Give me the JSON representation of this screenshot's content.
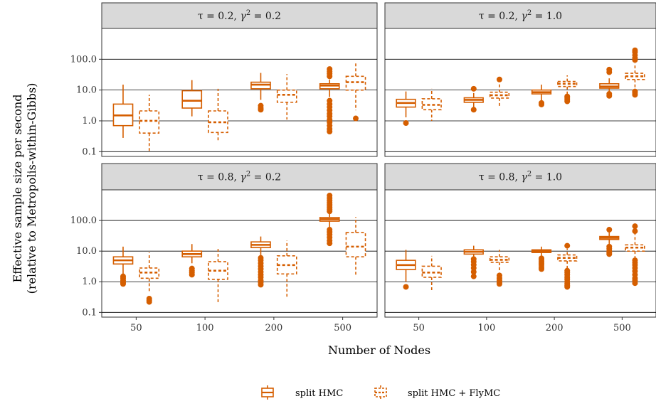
{
  "colors": {
    "series": "#D55E00",
    "strip_fill": "#D9D9D9",
    "grid": "#000000"
  },
  "chart_data": {
    "type": "boxplot",
    "ylabel_line1": "Effective sample size per second",
    "ylabel_line2": "(relative to Metropolis-within-Gibbs)",
    "xlabel": "Number of Nodes",
    "y_scale": "log10",
    "ylim": [
      0.07,
      1000
    ],
    "y_ticks": [
      0.1,
      1,
      10,
      100
    ],
    "y_tick_labels": [
      "0.1",
      "1.0",
      "10.0",
      "100.0"
    ],
    "categories": [
      "50",
      "100",
      "200",
      "500"
    ],
    "series": [
      {
        "name": "split HMC",
        "dash": "solid"
      },
      {
        "name": "split HMC + FlyMC",
        "dash": "dashed"
      }
    ],
    "panels": [
      {
        "strip_tau": "τ = 0.2, ",
        "strip_gamma": "γ",
        "strip_sup": "2",
        "strip_rest": " = 0.2",
        "boxes": [
          [
            {
              "q1": 0.7,
              "med": 1.5,
              "q3": 3.5,
              "lo": 0.28,
              "hi": 15,
              "out": []
            },
            {
              "q1": 0.4,
              "med": 1.0,
              "q3": 2.1,
              "lo": 0.09,
              "hi": 7.0,
              "out": []
            }
          ],
          [
            {
              "q1": 2.6,
              "med": 4.5,
              "q3": 9.5,
              "lo": 1.4,
              "hi": 21,
              "out": []
            },
            {
              "q1": 0.42,
              "med": 0.9,
              "q3": 2.1,
              "lo": 0.22,
              "hi": 11,
              "out": []
            }
          ],
          [
            {
              "q1": 11,
              "med": 15,
              "q3": 18,
              "lo": 4.8,
              "hi": 36,
              "out": [
                3.1,
                2.6,
                2.3
              ]
            },
            {
              "q1": 4.0,
              "med": 7.0,
              "q3": 10,
              "lo": 1.1,
              "hi": 33,
              "out": []
            }
          ],
          [
            {
              "q1": 11,
              "med": 14,
              "q3": 16,
              "lo": 6,
              "hi": 22,
              "out": [
                48,
                40,
                34,
                28,
                4.5,
                3.5,
                2.8,
                2.2,
                1.7,
                1.4,
                1.1,
                0.9,
                0.7,
                0.55,
                0.45
              ]
            },
            {
              "q1": 10,
              "med": 18,
              "q3": 28,
              "lo": 2.2,
              "hi": 85,
              "out": [
                1.2
              ]
            }
          ]
        ]
      },
      {
        "strip_tau": "τ = 0.2, ",
        "strip_gamma": "γ",
        "strip_sup": "2",
        "strip_rest": " = 1.0",
        "boxes": [
          [
            {
              "q1": 2.8,
              "med": 3.8,
              "q3": 5.0,
              "lo": 1.3,
              "hi": 9.0,
              "out": [
                0.85
              ]
            },
            {
              "q1": 2.3,
              "med": 3.3,
              "q3": 5.2,
              "lo": 1.0,
              "hi": 11,
              "out": []
            }
          ],
          [
            {
              "q1": 4.0,
              "med": 4.8,
              "q3": 5.6,
              "lo": 2.8,
              "hi": 8.0,
              "out": [
                11,
                2.3
              ]
            },
            {
              "q1": 5.5,
              "med": 6.8,
              "q3": 8.5,
              "lo": 3.0,
              "hi": 16,
              "out": [
                22
              ]
            }
          ],
          [
            {
              "q1": 7.5,
              "med": 8.5,
              "q3": 10,
              "lo": 4.5,
              "hi": 15,
              "out": [
                3.8,
                3.4
              ]
            },
            {
              "q1": 13,
              "med": 16,
              "q3": 19,
              "lo": 7.0,
              "hi": 30,
              "out": [
                6.2,
                5.5,
                4.8,
                4.3
              ]
            }
          ],
          [
            {
              "q1": 11.5,
              "med": 13,
              "q3": 16,
              "lo": 8.0,
              "hi": 24,
              "out": [
                46,
                38,
                7.5,
                6.5
              ]
            },
            {
              "q1": 22,
              "med": 28,
              "q3": 35,
              "lo": 10,
              "hi": 75,
              "out": [
                195,
                170,
                135,
                110,
                95,
                9,
                8,
                7
              ]
            }
          ]
        ]
      },
      {
        "strip_tau": "τ = 0.8, ",
        "strip_gamma": "γ",
        "strip_sup": "2",
        "strip_rest": " = 0.2",
        "boxes": [
          [
            {
              "q1": 3.8,
              "med": 5.0,
              "q3": 6.5,
              "lo": 1.8,
              "hi": 14,
              "out": [
                1.5,
                1.3,
                1.1,
                0.95,
                0.85
              ]
            },
            {
              "q1": 1.3,
              "med": 2.0,
              "q3": 2.8,
              "lo": 0.45,
              "hi": 9.0,
              "out": [
                0.28,
                0.25,
                0.22
              ]
            }
          ],
          [
            {
              "q1": 6.5,
              "med": 8.0,
              "q3": 10,
              "lo": 4.0,
              "hi": 17,
              "out": [
                2.7,
                2.3,
                2.0,
                1.7
              ]
            },
            {
              "q1": 1.2,
              "med": 2.3,
              "q3": 4.5,
              "lo": 0.2,
              "hi": 12,
              "out": []
            }
          ],
          [
            {
              "q1": 13,
              "med": 16,
              "q3": 20,
              "lo": 7.0,
              "hi": 30,
              "out": [
                6.0,
                5.0,
                4.0,
                3.2,
                2.6,
                2.1,
                1.7,
                1.4,
                1.1,
                0.95,
                0.8
              ]
            },
            {
              "q1": 1.8,
              "med": 3.5,
              "q3": 7.0,
              "lo": 0.3,
              "hi": 22,
              "out": []
            }
          ],
          [
            {
              "q1": 95,
              "med": 110,
              "q3": 125,
              "lo": 60,
              "hi": 185,
              "out": [
                650,
                540,
                450,
                380,
                320,
                270,
                230,
                200,
                50,
                42,
                35,
                28,
                22,
                18
              ]
            },
            {
              "q1": 6.5,
              "med": 14,
              "q3": 40,
              "lo": 1.6,
              "hi": 130,
              "out": []
            }
          ]
        ]
      },
      {
        "strip_tau": "τ = 0.8, ",
        "strip_gamma": "γ",
        "strip_sup": "2",
        "strip_rest": " = 1.0",
        "boxes": [
          [
            {
              "q1": 2.5,
              "med": 3.5,
              "q3": 5.0,
              "lo": 1.0,
              "hi": 11,
              "out": [
                0.68
              ]
            },
            {
              "q1": 1.4,
              "med": 2.0,
              "q3": 3.2,
              "lo": 0.5,
              "hi": 7.0,
              "out": []
            }
          ],
          [
            {
              "q1": 8.0,
              "med": 9.5,
              "q3": 11,
              "lo": 6.0,
              "hi": 15,
              "out": [
                5.5,
                4.5,
                3.6,
                2.8,
                2.1,
                1.5
              ]
            },
            {
              "q1": 4.3,
              "med": 5.2,
              "q3": 6.5,
              "lo": 2.0,
              "hi": 11,
              "out": [
                1.6,
                1.3,
                1.1,
                0.95,
                0.85
              ]
            }
          ],
          [
            {
              "q1": 9.0,
              "med": 10,
              "q3": 11,
              "lo": 6.5,
              "hi": 14,
              "out": [
                5.8,
                5.2,
                4.6,
                4.0,
                3.5,
                3.0,
                2.6
              ]
            },
            {
              "q1": 4.8,
              "med": 6.0,
              "q3": 7.5,
              "lo": 2.6,
              "hi": 12,
              "out": [
                15,
                2.3,
                2.0,
                1.7,
                1.4,
                1.2,
                1.0,
                0.85,
                0.75,
                0.68
              ]
            }
          ],
          [
            {
              "q1": 24,
              "med": 27,
              "q3": 30,
              "lo": 16,
              "hi": 42,
              "out": [
                50,
                14,
                12,
                10,
                9,
                8
              ]
            },
            {
              "q1": 10,
              "med": 13,
              "q3": 16,
              "lo": 5.5,
              "hi": 38,
              "out": [
                65,
                45,
                5,
                4.2,
                3.5,
                2.8,
                2.2,
                1.7,
                1.3,
                1.1,
                0.9
              ]
            }
          ]
        ]
      }
    ]
  }
}
